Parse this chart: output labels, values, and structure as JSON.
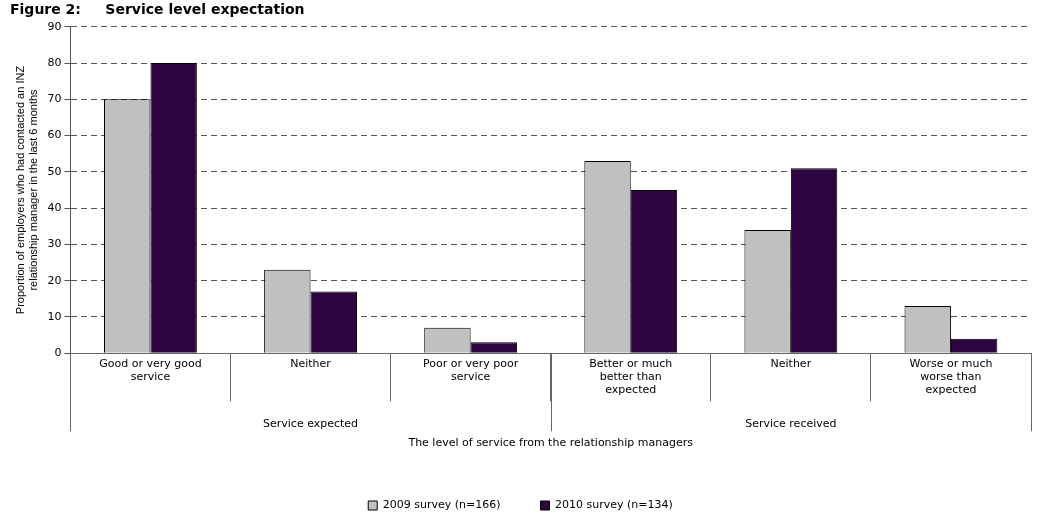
{
  "chart_data": {
    "type": "bar",
    "title": "Figure 2:     Service level expectation",
    "categories": [
      "Good or very good service",
      "Neither",
      "Poor or very poor service",
      "Better or much better than expected",
      "Neither",
      "Worse or much worse than expected"
    ],
    "series": [
      {
        "name": "2009 survey (n=166)",
        "color": "#c0c0c0",
        "values": [
          70,
          23,
          7,
          53,
          34,
          13
        ]
      },
      {
        "name": "2010 survey (n=134)",
        "color": "#2e0540",
        "values": [
          80,
          17,
          3,
          45,
          51,
          4
        ]
      }
    ],
    "ylabel": "Proportion of employers who had contacted an INZ relationship manager in the last 6 months",
    "xlabel": "The level of service from the relationship managers",
    "annotations": [
      "Service expected",
      "Service received"
    ],
    "ylim": [
      0,
      90
    ],
    "yticks": [
      0,
      10,
      20,
      30,
      40,
      50,
      60,
      70,
      80,
      90
    ],
    "grid": "y",
    "legend": "bottom"
  }
}
